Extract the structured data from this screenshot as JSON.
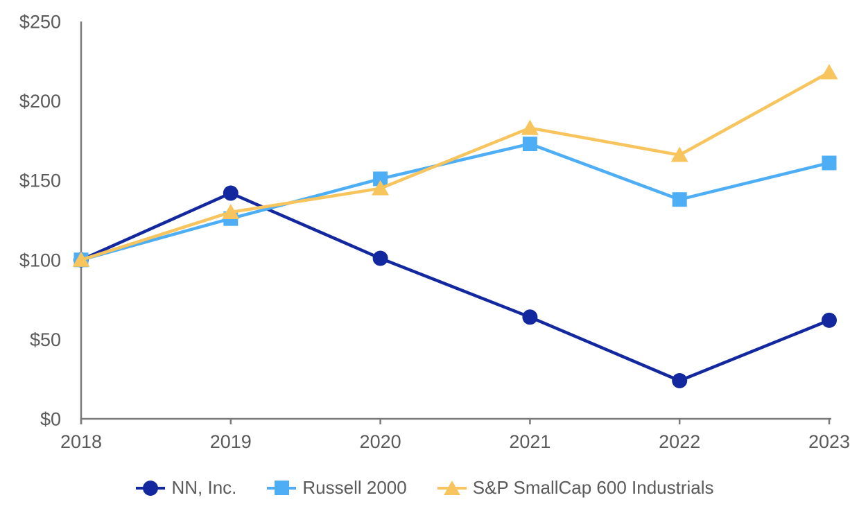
{
  "chart_data": {
    "type": "line",
    "title": "",
    "xlabel": "",
    "ylabel": "",
    "x_labels": [
      "2018",
      "2019",
      "2020",
      "2021",
      "2022",
      "2023"
    ],
    "y_ticks": [
      {
        "label": "$0",
        "value": 0
      },
      {
        "label": "$50",
        "value": 50
      },
      {
        "label": "$100",
        "value": 100
      },
      {
        "label": "$150",
        "value": 150
      },
      {
        "label": "$200",
        "value": 200
      },
      {
        "label": "$250",
        "value": 250
      }
    ],
    "ylim": [
      0,
      250
    ],
    "grid": false,
    "legend_position": "bottom",
    "series": [
      {
        "name": "NN, Inc.",
        "marker": "circle",
        "color": "#13289F",
        "values": [
          100,
          142,
          101,
          64,
          24,
          62
        ]
      },
      {
        "name": "Russell 2000",
        "marker": "square",
        "color": "#4DAEF5",
        "values": [
          100,
          126,
          151,
          173,
          138,
          161
        ]
      },
      {
        "name": "S&P SmallCap 600 Industrials",
        "marker": "triangle",
        "color": "#F7C45D",
        "values": [
          100,
          130,
          145,
          183,
          166,
          218
        ]
      }
    ],
    "colors": {
      "axis": "#7b7b7b",
      "tick_label": "#5a5a5a",
      "background": "#ffffff"
    }
  }
}
